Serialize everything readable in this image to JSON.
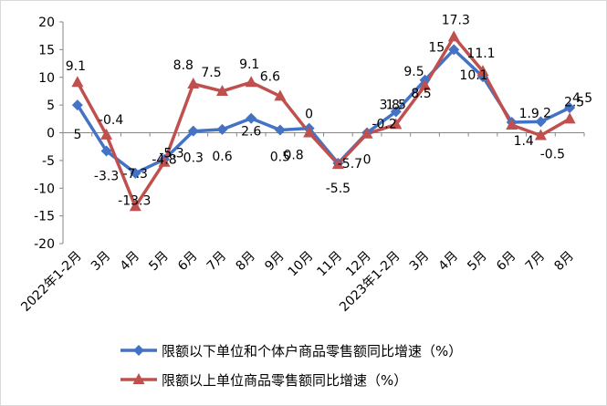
{
  "chart_data": {
    "type": "line",
    "categories": [
      "2022年1-2月",
      "3月",
      "4月",
      "5月",
      "6月",
      "7月",
      "8月",
      "9月",
      "10月",
      "11月",
      "12月",
      "2023年1-2月",
      "3月",
      "4月",
      "5月",
      "6月",
      "7月",
      "8月"
    ],
    "ylim": [
      -20,
      20
    ],
    "yticks": [
      -20,
      -15,
      -10,
      -5,
      0,
      5,
      10,
      15,
      20
    ],
    "grid": false,
    "legend_position": "bottom",
    "series": [
      {
        "name": "限额以下单位和个体户商品零售额同比增速（%）",
        "color": "#4472c4",
        "marker": "diamond",
        "values": [
          5,
          -3.3,
          -7.3,
          -4.8,
          0.3,
          0.6,
          2.6,
          0.5,
          0.8,
          -5.5,
          0,
          3.8,
          9.5,
          15,
          10.1,
          1.9,
          2,
          4.5
        ],
        "labels": [
          "5",
          "-3.3",
          "-7.3",
          "-4.8",
          "0.3",
          "0.6",
          "2.6",
          "0.5",
          "0.8",
          "-5.5",
          "0",
          "3.8",
          "9.5",
          "15",
          "10.1",
          "1.9",
          "2",
          "4.5"
        ]
      },
      {
        "name": "限额以上单位商品零售额同比增速（%）",
        "color": "#c0504d",
        "marker": "triangle",
        "values": [
          9.1,
          -0.4,
          -13.3,
          -5.3,
          8.8,
          7.5,
          9.1,
          6.6,
          0,
          -5.7,
          -0.2,
          1.5,
          8.5,
          17.3,
          11.1,
          1.4,
          -0.5,
          2.5
        ],
        "labels": [
          "9.1",
          "-0.4",
          "-13.3",
          "-5.3",
          "8.8",
          "7.5",
          "9.1",
          "6.6",
          "0",
          "-5.7",
          "-0.2",
          "1.5",
          "8.5",
          "17.3",
          "11.1",
          "1.4",
          "-0.5",
          "2.5"
        ]
      }
    ]
  }
}
